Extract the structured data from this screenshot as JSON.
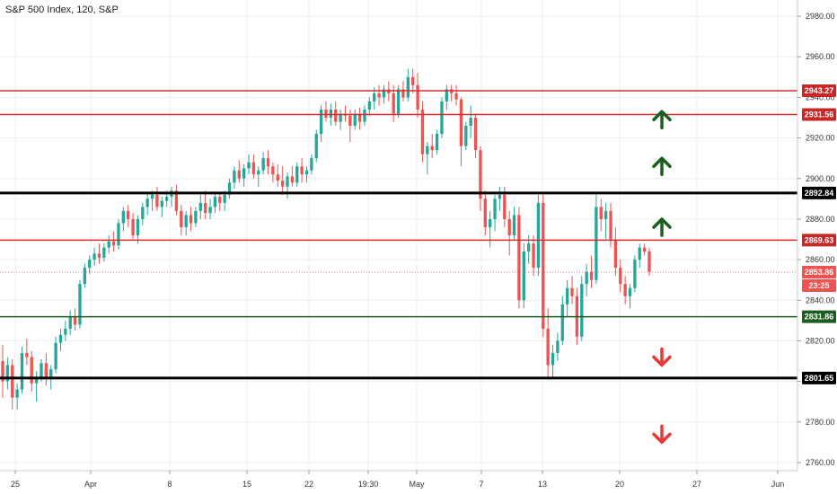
{
  "chart_data": {
    "type": "candlestick",
    "title": "S&P 500 Index, 120, S&P",
    "ylim": [
      2756,
      2988
    ],
    "y_ticks": [
      2760,
      2780,
      2800,
      2820,
      2840,
      2860,
      2880,
      2900,
      2920,
      2940,
      2960,
      2980
    ],
    "x_ticks": [
      "25",
      "Apr",
      "8",
      "15",
      "22",
      "19:30",
      "May",
      "7",
      "13",
      "20",
      "27",
      "Jun"
    ],
    "grid": true,
    "last_price": "2853.86",
    "countdown": "23:25",
    "levels": [
      {
        "value": 2943.27,
        "label": "2943.27",
        "color": "#d32f2f"
      },
      {
        "value": 2931.56,
        "label": "2931.56",
        "color": "#d32f2f"
      },
      {
        "value": 2892.84,
        "label": "2892.84",
        "color": "#000000"
      },
      {
        "value": 2869.63,
        "label": "2869.63",
        "color": "#d32f2f"
      },
      {
        "value": 2831.86,
        "label": "2831.86",
        "color": "#1b5e20"
      },
      {
        "value": 2801.65,
        "label": "2801.65",
        "color": "#000000"
      }
    ],
    "arrows": [
      {
        "direction": "up",
        "price": 2929
      },
      {
        "direction": "up",
        "price": 2906
      },
      {
        "direction": "up",
        "price": 2876
      },
      {
        "direction": "down",
        "price": 2812
      },
      {
        "direction": "down",
        "price": 2774
      }
    ],
    "ohlc": [
      [
        2810,
        2818,
        2792,
        2800
      ],
      [
        2800,
        2812,
        2796,
        2808
      ],
      [
        2808,
        2811,
        2786,
        2792
      ],
      [
        2792,
        2799,
        2786,
        2796
      ],
      [
        2796,
        2817,
        2794,
        2814
      ],
      [
        2814,
        2821,
        2808,
        2812
      ],
      [
        2812,
        2815,
        2795,
        2799
      ],
      [
        2799,
        2805,
        2790,
        2802
      ],
      [
        2802,
        2811,
        2800,
        2809
      ],
      [
        2809,
        2814,
        2798,
        2801
      ],
      [
        2801,
        2808,
        2796,
        2806
      ],
      [
        2806,
        2822,
        2804,
        2819
      ],
      [
        2819,
        2826,
        2815,
        2823
      ],
      [
        2823,
        2830,
        2820,
        2826
      ],
      [
        2826,
        2835,
        2823,
        2832
      ],
      [
        2832,
        2836,
        2825,
        2828
      ],
      [
        2828,
        2850,
        2826,
        2848
      ],
      [
        2848,
        2858,
        2846,
        2856
      ],
      [
        2856,
        2862,
        2853,
        2860
      ],
      [
        2860,
        2866,
        2857,
        2863
      ],
      [
        2863,
        2868,
        2858,
        2861
      ],
      [
        2861,
        2868,
        2859,
        2866
      ],
      [
        2866,
        2872,
        2863,
        2869
      ],
      [
        2869,
        2874,
        2864,
        2867
      ],
      [
        2867,
        2880,
        2865,
        2878
      ],
      [
        2878,
        2886,
        2874,
        2884
      ],
      [
        2884,
        2887,
        2876,
        2880
      ],
      [
        2880,
        2883,
        2870,
        2872
      ],
      [
        2872,
        2882,
        2868,
        2880
      ],
      [
        2880,
        2888,
        2877,
        2886
      ],
      [
        2886,
        2893,
        2882,
        2890
      ],
      [
        2890,
        2894,
        2884,
        2892
      ],
      [
        2892,
        2896,
        2884,
        2886
      ],
      [
        2886,
        2891,
        2881,
        2889
      ],
      [
        2889,
        2894,
        2886,
        2891
      ],
      [
        2891,
        2896,
        2886,
        2894
      ],
      [
        2894,
        2897,
        2882,
        2884
      ],
      [
        2884,
        2887,
        2872,
        2876
      ],
      [
        2876,
        2884,
        2872,
        2882
      ],
      [
        2882,
        2886,
        2874,
        2878
      ],
      [
        2878,
        2886,
        2876,
        2884
      ],
      [
        2884,
        2892,
        2880,
        2888
      ],
      [
        2888,
        2894,
        2880,
        2883
      ],
      [
        2883,
        2890,
        2880,
        2886
      ],
      [
        2886,
        2893,
        2883,
        2891
      ],
      [
        2891,
        2893,
        2884,
        2888
      ],
      [
        2888,
        2894,
        2884,
        2892
      ],
      [
        2892,
        2900,
        2890,
        2898
      ],
      [
        2898,
        2906,
        2895,
        2904
      ],
      [
        2904,
        2909,
        2898,
        2900
      ],
      [
        2900,
        2907,
        2896,
        2905
      ],
      [
        2905,
        2912,
        2902,
        2908
      ],
      [
        2908,
        2912,
        2900,
        2902
      ],
      [
        2902,
        2906,
        2896,
        2904
      ],
      [
        2904,
        2913,
        2902,
        2910
      ],
      [
        2910,
        2914,
        2902,
        2906
      ],
      [
        2906,
        2908,
        2898,
        2902
      ],
      [
        2902,
        2907,
        2896,
        2899
      ],
      [
        2899,
        2906,
        2892,
        2896
      ],
      [
        2896,
        2903,
        2890,
        2901
      ],
      [
        2901,
        2906,
        2896,
        2898
      ],
      [
        2898,
        2908,
        2896,
        2906
      ],
      [
        2906,
        2910,
        2898,
        2902
      ],
      [
        2902,
        2906,
        2898,
        2904
      ],
      [
        2904,
        2912,
        2902,
        2910
      ],
      [
        2910,
        2924,
        2908,
        2922
      ],
      [
        2922,
        2936,
        2918,
        2934
      ],
      [
        2934,
        2938,
        2928,
        2930
      ],
      [
        2930,
        2937,
        2926,
        2934
      ],
      [
        2934,
        2938,
        2926,
        2928
      ],
      [
        2928,
        2934,
        2924,
        2932
      ],
      [
        2932,
        2936,
        2928,
        2931
      ],
      [
        2931,
        2934,
        2918,
        2926
      ],
      [
        2926,
        2934,
        2924,
        2932
      ],
      [
        2932,
        2935,
        2924,
        2928
      ],
      [
        2928,
        2936,
        2926,
        2934
      ],
      [
        2934,
        2940,
        2931,
        2938
      ],
      [
        2938,
        2945,
        2934,
        2942
      ],
      [
        2942,
        2946,
        2936,
        2940
      ],
      [
        2940,
        2946,
        2937,
        2944
      ],
      [
        2944,
        2948,
        2938,
        2942
      ],
      [
        2942,
        2946,
        2928,
        2932
      ],
      [
        2932,
        2946,
        2930,
        2944
      ],
      [
        2944,
        2948,
        2938,
        2940
      ],
      [
        2940,
        2954,
        2938,
        2950
      ],
      [
        2950,
        2954,
        2942,
        2946
      ],
      [
        2946,
        2952,
        2930,
        2934
      ],
      [
        2934,
        2938,
        2908,
        2912
      ],
      [
        2912,
        2918,
        2902,
        2916
      ],
      [
        2916,
        2922,
        2910,
        2914
      ],
      [
        2914,
        2924,
        2912,
        2922
      ],
      [
        2922,
        2940,
        2920,
        2938
      ],
      [
        2938,
        2946,
        2934,
        2944
      ],
      [
        2944,
        2946,
        2938,
        2942
      ],
      [
        2942,
        2946,
        2936,
        2939
      ],
      [
        2939,
        2940,
        2906,
        2916
      ],
      [
        2916,
        2928,
        2914,
        2926
      ],
      [
        2926,
        2936,
        2920,
        2930
      ],
      [
        2930,
        2932,
        2910,
        2914
      ],
      [
        2914,
        2916,
        2884,
        2890
      ],
      [
        2890,
        2894,
        2872,
        2876
      ],
      [
        2876,
        2884,
        2866,
        2880
      ],
      [
        2880,
        2892,
        2874,
        2890
      ],
      [
        2890,
        2896,
        2884,
        2892
      ],
      [
        2892,
        2896,
        2876,
        2880
      ],
      [
        2880,
        2884,
        2862,
        2872
      ],
      [
        2872,
        2886,
        2870,
        2882
      ],
      [
        2882,
        2886,
        2836,
        2840
      ],
      [
        2840,
        2868,
        2836,
        2864
      ],
      [
        2864,
        2872,
        2858,
        2868
      ],
      [
        2868,
        2872,
        2852,
        2856
      ],
      [
        2856,
        2892,
        2852,
        2888
      ],
      [
        2888,
        2892,
        2822,
        2826
      ],
      [
        2826,
        2836,
        2802,
        2808
      ],
      [
        2808,
        2818,
        2802,
        2814
      ],
      [
        2814,
        2824,
        2810,
        2820
      ],
      [
        2820,
        2842,
        2818,
        2838
      ],
      [
        2838,
        2850,
        2832,
        2846
      ],
      [
        2846,
        2852,
        2838,
        2842
      ],
      [
        2842,
        2846,
        2818,
        2822
      ],
      [
        2822,
        2852,
        2820,
        2848
      ],
      [
        2848,
        2858,
        2842,
        2854
      ],
      [
        2854,
        2862,
        2846,
        2850
      ],
      [
        2850,
        2892,
        2848,
        2886
      ],
      [
        2886,
        2890,
        2874,
        2880
      ],
      [
        2880,
        2888,
        2870,
        2884
      ],
      [
        2884,
        2888,
        2866,
        2870
      ],
      [
        2870,
        2876,
        2852,
        2856
      ],
      [
        2856,
        2860,
        2844,
        2848
      ],
      [
        2848,
        2852,
        2838,
        2842
      ],
      [
        2842,
        2848,
        2836,
        2846
      ],
      [
        2846,
        2862,
        2844,
        2860
      ],
      [
        2860,
        2868,
        2856,
        2866
      ],
      [
        2866,
        2868,
        2862,
        2864
      ],
      [
        2864,
        2866,
        2852,
        2854
      ]
    ]
  }
}
